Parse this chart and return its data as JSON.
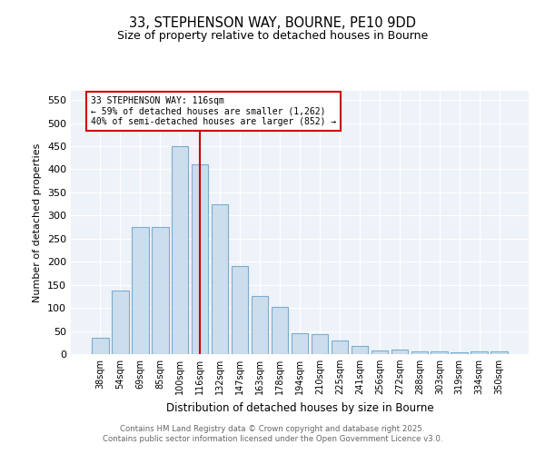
{
  "title_line1": "33, STEPHENSON WAY, BOURNE, PE10 9DD",
  "title_line2": "Size of property relative to detached houses in Bourne",
  "xlabel": "Distribution of detached houses by size in Bourne",
  "ylabel": "Number of detached properties",
  "categories": [
    "38sqm",
    "54sqm",
    "69sqm",
    "85sqm",
    "100sqm",
    "116sqm",
    "132sqm",
    "147sqm",
    "163sqm",
    "178sqm",
    "194sqm",
    "210sqm",
    "225sqm",
    "241sqm",
    "256sqm",
    "272sqm",
    "288sqm",
    "303sqm",
    "319sqm",
    "334sqm",
    "350sqm"
  ],
  "values": [
    35,
    137,
    275,
    275,
    450,
    410,
    325,
    190,
    125,
    103,
    45,
    43,
    30,
    18,
    8,
    9,
    5,
    5,
    3,
    5,
    5
  ],
  "bar_color": "#ccdded",
  "bar_edge_color": "#7aaece",
  "marker_index": 5,
  "marker_color": "#cc0000",
  "annotation_title": "33 STEPHENSON WAY: 116sqm",
  "annotation_line1": "← 59% of detached houses are smaller (1,262)",
  "annotation_line2": "40% of semi-detached houses are larger (852) →",
  "annotation_box_facecolor": "#ffffff",
  "annotation_box_edgecolor": "#cc0000",
  "ylim_max": 570,
  "yticks": [
    0,
    50,
    100,
    150,
    200,
    250,
    300,
    350,
    400,
    450,
    500,
    550
  ],
  "background_color": "#eef2f9",
  "grid_color": "#ffffff",
  "footer_line1": "Contains HM Land Registry data © Crown copyright and database right 2025.",
  "footer_line2": "Contains public sector information licensed under the Open Government Licence v3.0."
}
